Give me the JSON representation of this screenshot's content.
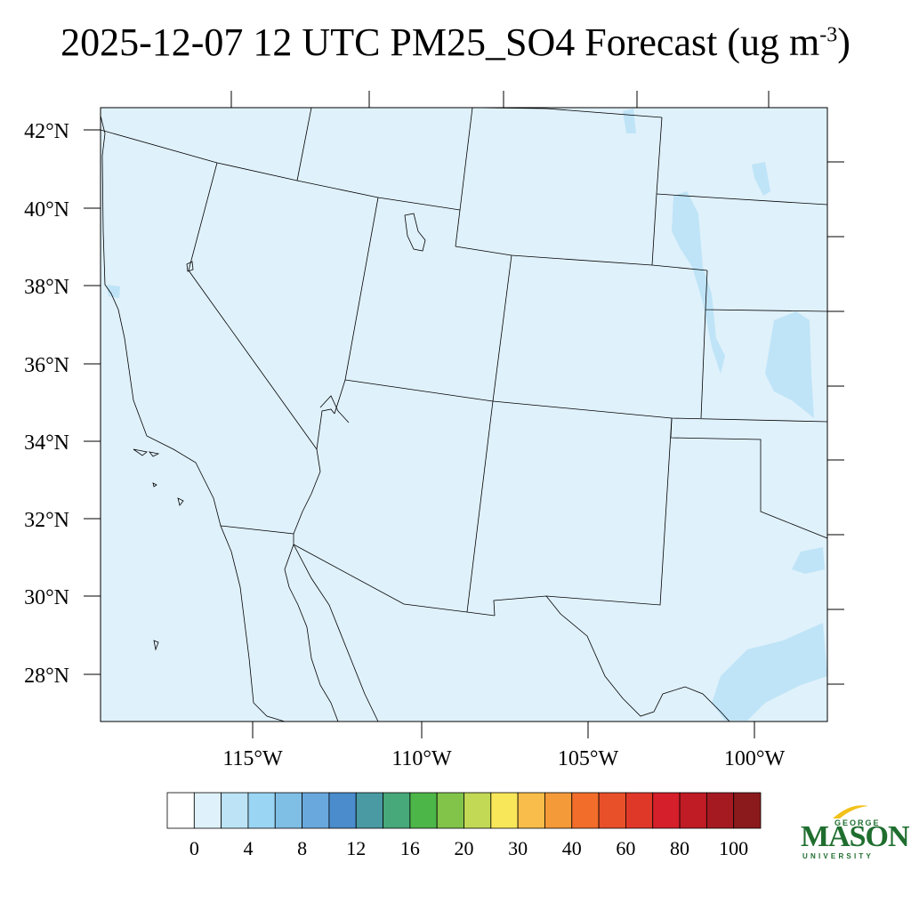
{
  "title": {
    "main": "2025-12-07 12 UTC PM25_SO4 Forecast (ug m",
    "superscript": "-3",
    "close": ")"
  },
  "map": {
    "background_color": "#dff1fb",
    "boundary_color": "#000000",
    "lat_labels": [
      "42°N",
      "40°N",
      "38°N",
      "36°N",
      "34°N",
      "32°N",
      "30°N",
      "28°N"
    ],
    "lon_labels": [
      "115°W",
      "110°W",
      "105°W",
      "100°W"
    ],
    "concentration_fill_color": "#bfe4f7"
  },
  "colorbar": {
    "colors": [
      "#ffffff",
      "#dff1fb",
      "#bce4f6",
      "#9ad5f3",
      "#7fbee5",
      "#68a8dd",
      "#4a8ccc",
      "#4a9aa4",
      "#47a87a",
      "#4cb649",
      "#82c44a",
      "#c2d955",
      "#f9e75a",
      "#f8bd4a",
      "#f59a38",
      "#f26d2a",
      "#e8502a",
      "#e03828",
      "#d51f2a",
      "#bf1c25",
      "#a51a21",
      "#8b1a1c"
    ],
    "labels": [
      "0",
      "4",
      "8",
      "12",
      "16",
      "20",
      "30",
      "40",
      "60",
      "80",
      "100"
    ]
  },
  "logo": {
    "top_text": "GEORGE",
    "main_text": "MASON",
    "bottom_text": "UNIVERSITY"
  }
}
